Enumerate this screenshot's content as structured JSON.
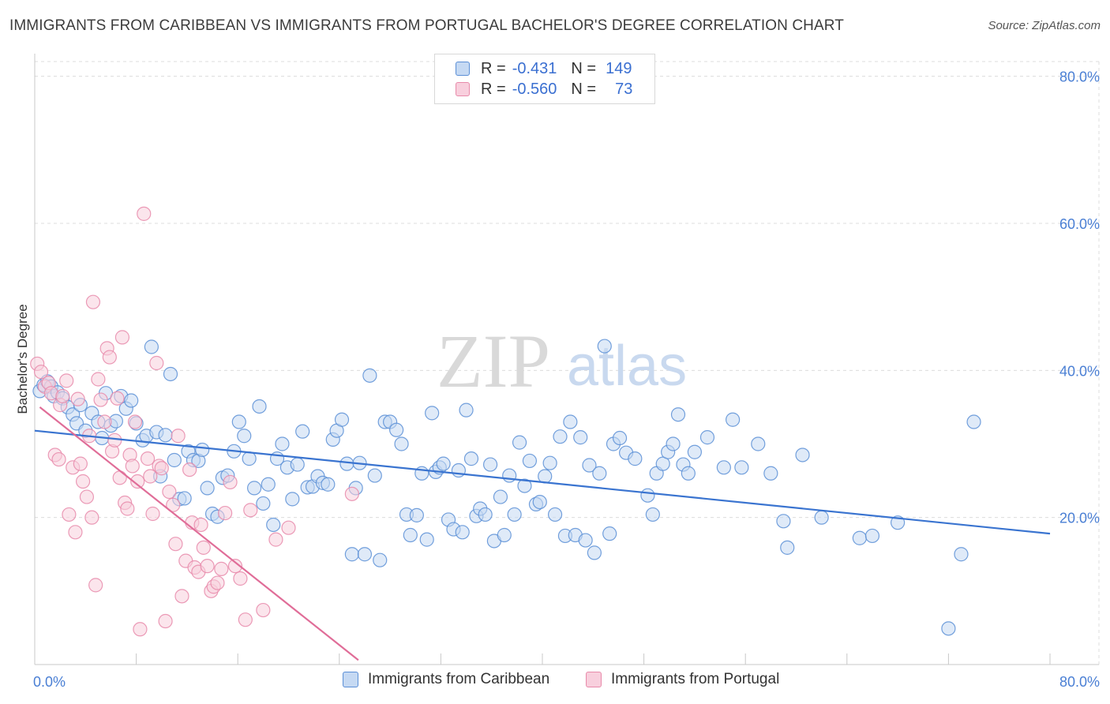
{
  "title": "IMMIGRANTS FROM CARIBBEAN VS IMMIGRANTS FROM PORTUGAL BACHELOR'S DEGREE CORRELATION CHART",
  "source": "Source: ZipAtlas.com",
  "watermark": {
    "part1": "ZIP",
    "part2": "atlas"
  },
  "legend_stats": [
    {
      "r_label": "R =",
      "r_value": "-0.431",
      "n_label": "N =",
      "n_value": "149",
      "color": "#5b8fd6",
      "fill": "#c5d9f3"
    },
    {
      "r_label": "R =",
      "r_value": "-0.560",
      "n_label": "N =",
      "n_value": "73",
      "color": "#e88aaa",
      "fill": "#f8cfdd"
    }
  ],
  "chart_data": {
    "type": "scatter",
    "title": "IMMIGRANTS FROM CARIBBEAN VS IMMIGRANTS FROM PORTUGAL BACHELOR'S DEGREE CORRELATION CHART",
    "xlabel": "",
    "ylabel": "Bachelor's Degree",
    "xlim": [
      0,
      80
    ],
    "ylim": [
      0,
      82
    ],
    "x_tick_labels": [
      "0.0%",
      "80.0%"
    ],
    "y_ticks": [
      20,
      40,
      60,
      80
    ],
    "y_tick_labels": [
      "20.0%",
      "40.0%",
      "60.0%",
      "80.0%"
    ],
    "grid": true,
    "legend_placement": "bottom-center",
    "series": [
      {
        "name": "Immigrants from Caribbean",
        "color": "#5b8fd6",
        "fill": "#c5d9f3",
        "trend": {
          "x": [
            0,
            80
          ],
          "y": [
            31.8,
            17.8
          ],
          "color": "#3a74d0"
        },
        "points": [
          [
            0.4,
            37.2
          ],
          [
            0.7,
            38.0
          ],
          [
            1.0,
            38.5
          ],
          [
            1.3,
            37.8
          ],
          [
            1.5,
            36.5
          ],
          [
            1.8,
            37.0
          ],
          [
            2.2,
            36.2
          ],
          [
            2.6,
            35.0
          ],
          [
            3.0,
            34.0
          ],
          [
            3.3,
            32.8
          ],
          [
            3.6,
            35.3
          ],
          [
            4.0,
            31.8
          ],
          [
            4.5,
            34.2
          ],
          [
            5.0,
            33.0
          ],
          [
            5.3,
            30.8
          ],
          [
            5.6,
            36.9
          ],
          [
            6.0,
            32.5
          ],
          [
            6.4,
            33.1
          ],
          [
            6.8,
            36.5
          ],
          [
            7.2,
            34.8
          ],
          [
            7.6,
            35.9
          ],
          [
            8.0,
            32.8
          ],
          [
            8.5,
            30.5
          ],
          [
            8.8,
            31.1
          ],
          [
            9.2,
            43.2
          ],
          [
            9.6,
            31.6
          ],
          [
            9.9,
            25.6
          ],
          [
            10.3,
            31.2
          ],
          [
            10.7,
            39.5
          ],
          [
            11.0,
            27.8
          ],
          [
            11.4,
            22.5
          ],
          [
            11.8,
            22.6
          ],
          [
            12.1,
            29.0
          ],
          [
            12.5,
            27.8
          ],
          [
            12.9,
            27.7
          ],
          [
            13.2,
            29.2
          ],
          [
            13.6,
            24.0
          ],
          [
            14.0,
            20.5
          ],
          [
            14.4,
            20.1
          ],
          [
            14.8,
            25.4
          ],
          [
            15.2,
            25.7
          ],
          [
            15.7,
            29.0
          ],
          [
            16.1,
            33.0
          ],
          [
            16.5,
            31.1
          ],
          [
            16.9,
            28.0
          ],
          [
            17.3,
            24.0
          ],
          [
            17.7,
            35.1
          ],
          [
            18.0,
            21.9
          ],
          [
            18.4,
            24.5
          ],
          [
            18.8,
            19.0
          ],
          [
            19.1,
            28.0
          ],
          [
            19.5,
            30.0
          ],
          [
            19.9,
            26.8
          ],
          [
            20.3,
            22.5
          ],
          [
            20.7,
            27.2
          ],
          [
            21.1,
            31.7
          ],
          [
            21.5,
            24.1
          ],
          [
            21.9,
            24.2
          ],
          [
            22.3,
            25.6
          ],
          [
            22.7,
            24.7
          ],
          [
            23.1,
            24.5
          ],
          [
            23.5,
            30.6
          ],
          [
            23.8,
            31.8
          ],
          [
            24.2,
            33.3
          ],
          [
            24.6,
            27.3
          ],
          [
            25.0,
            15.0
          ],
          [
            25.3,
            24.0
          ],
          [
            25.6,
            27.4
          ],
          [
            26.0,
            15.0
          ],
          [
            26.4,
            39.3
          ],
          [
            26.8,
            25.7
          ],
          [
            27.2,
            14.2
          ],
          [
            27.6,
            33.0
          ],
          [
            28.0,
            33.0
          ],
          [
            28.5,
            31.9
          ],
          [
            28.9,
            30.0
          ],
          [
            29.3,
            20.4
          ],
          [
            29.6,
            17.6
          ],
          [
            30.1,
            20.3
          ],
          [
            30.5,
            26.0
          ],
          [
            30.9,
            17.0
          ],
          [
            31.3,
            34.2
          ],
          [
            31.6,
            26.2
          ],
          [
            31.9,
            26.8
          ],
          [
            32.2,
            27.3
          ],
          [
            32.6,
            19.7
          ],
          [
            33.0,
            18.4
          ],
          [
            33.4,
            26.4
          ],
          [
            33.7,
            18.0
          ],
          [
            34.0,
            34.6
          ],
          [
            34.4,
            28.0
          ],
          [
            34.8,
            20.2
          ],
          [
            35.1,
            21.2
          ],
          [
            35.5,
            20.4
          ],
          [
            35.9,
            27.2
          ],
          [
            36.2,
            16.8
          ],
          [
            36.7,
            22.8
          ],
          [
            37.0,
            17.6
          ],
          [
            37.4,
            25.7
          ],
          [
            37.8,
            20.4
          ],
          [
            38.2,
            30.2
          ],
          [
            38.6,
            24.3
          ],
          [
            39.0,
            27.7
          ],
          [
            39.5,
            21.8
          ],
          [
            39.8,
            22.1
          ],
          [
            40.2,
            25.6
          ],
          [
            40.6,
            27.4
          ],
          [
            41.0,
            20.4
          ],
          [
            41.4,
            31.0
          ],
          [
            41.8,
            17.5
          ],
          [
            42.2,
            33.0
          ],
          [
            42.6,
            17.6
          ],
          [
            43.0,
            30.9
          ],
          [
            43.4,
            16.9
          ],
          [
            43.7,
            27.1
          ],
          [
            44.1,
            15.2
          ],
          [
            44.5,
            26.0
          ],
          [
            44.9,
            43.3
          ],
          [
            45.3,
            17.8
          ],
          [
            45.6,
            30.0
          ],
          [
            46.1,
            30.8
          ],
          [
            46.6,
            28.8
          ],
          [
            47.3,
            28.0
          ],
          [
            48.3,
            23.0
          ],
          [
            48.7,
            20.4
          ],
          [
            49.0,
            26.0
          ],
          [
            49.5,
            27.3
          ],
          [
            49.9,
            28.9
          ],
          [
            50.3,
            30.0
          ],
          [
            50.7,
            34.0
          ],
          [
            51.1,
            27.2
          ],
          [
            51.5,
            26.0
          ],
          [
            52.0,
            28.9
          ],
          [
            53.0,
            30.9
          ],
          [
            54.3,
            26.8
          ],
          [
            55.0,
            33.3
          ],
          [
            55.7,
            26.8
          ],
          [
            57.0,
            30.0
          ],
          [
            58.0,
            26.0
          ],
          [
            59.0,
            19.5
          ],
          [
            59.3,
            15.9
          ],
          [
            60.5,
            28.5
          ],
          [
            62.0,
            20.0
          ],
          [
            65.0,
            17.2
          ],
          [
            66.0,
            17.5
          ],
          [
            68.0,
            19.3
          ],
          [
            72.0,
            4.9
          ],
          [
            73.0,
            15.0
          ],
          [
            74.0,
            33.0
          ]
        ]
      },
      {
        "name": "Immigrants from Portugal",
        "color": "#e88aaa",
        "fill": "#f8cfdd",
        "trend": {
          "x": [
            0.4,
            25.5
          ],
          "y": [
            35.0,
            0.6
          ],
          "color": "#e06d98"
        },
        "points": [
          [
            0.2,
            40.9
          ],
          [
            0.5,
            39.8
          ],
          [
            0.8,
            37.8
          ],
          [
            1.1,
            38.3
          ],
          [
            1.3,
            36.9
          ],
          [
            1.6,
            28.5
          ],
          [
            1.9,
            27.9
          ],
          [
            2.0,
            35.3
          ],
          [
            2.2,
            36.5
          ],
          [
            2.5,
            38.6
          ],
          [
            2.7,
            20.4
          ],
          [
            3.0,
            26.8
          ],
          [
            3.2,
            18.0
          ],
          [
            3.4,
            36.1
          ],
          [
            3.6,
            27.3
          ],
          [
            3.8,
            24.9
          ],
          [
            4.1,
            22.8
          ],
          [
            4.3,
            31.1
          ],
          [
            4.5,
            20.0
          ],
          [
            4.6,
            49.3
          ],
          [
            4.8,
            10.8
          ],
          [
            5.0,
            38.8
          ],
          [
            5.2,
            36.0
          ],
          [
            5.5,
            33.0
          ],
          [
            5.7,
            43.0
          ],
          [
            5.9,
            41.8
          ],
          [
            6.1,
            29.0
          ],
          [
            6.3,
            30.5
          ],
          [
            6.5,
            36.2
          ],
          [
            6.7,
            25.4
          ],
          [
            6.9,
            44.5
          ],
          [
            7.1,
            22.0
          ],
          [
            7.3,
            21.2
          ],
          [
            7.5,
            28.5
          ],
          [
            7.7,
            27.0
          ],
          [
            7.9,
            33.0
          ],
          [
            8.1,
            24.9
          ],
          [
            8.3,
            4.8
          ],
          [
            8.6,
            61.3
          ],
          [
            8.9,
            28.0
          ],
          [
            9.1,
            25.6
          ],
          [
            9.3,
            20.5
          ],
          [
            9.6,
            41.0
          ],
          [
            9.8,
            27.0
          ],
          [
            10.0,
            26.7
          ],
          [
            10.3,
            5.9
          ],
          [
            10.6,
            23.5
          ],
          [
            10.9,
            21.7
          ],
          [
            11.1,
            16.4
          ],
          [
            11.3,
            31.1
          ],
          [
            11.6,
            9.3
          ],
          [
            11.9,
            14.1
          ],
          [
            12.2,
            26.5
          ],
          [
            12.4,
            19.3
          ],
          [
            12.6,
            13.2
          ],
          [
            12.9,
            12.6
          ],
          [
            13.1,
            19.0
          ],
          [
            13.3,
            15.9
          ],
          [
            13.6,
            13.4
          ],
          [
            13.9,
            10.0
          ],
          [
            14.1,
            10.6
          ],
          [
            14.4,
            11.1
          ],
          [
            14.7,
            13.0
          ],
          [
            15.0,
            20.6
          ],
          [
            15.4,
            24.8
          ],
          [
            15.8,
            13.4
          ],
          [
            16.2,
            11.7
          ],
          [
            16.6,
            6.1
          ],
          [
            17.0,
            21.0
          ],
          [
            18.0,
            7.4
          ],
          [
            19.0,
            17.0
          ],
          [
            20.0,
            18.6
          ],
          [
            25.0,
            23.2
          ]
        ]
      }
    ]
  }
}
